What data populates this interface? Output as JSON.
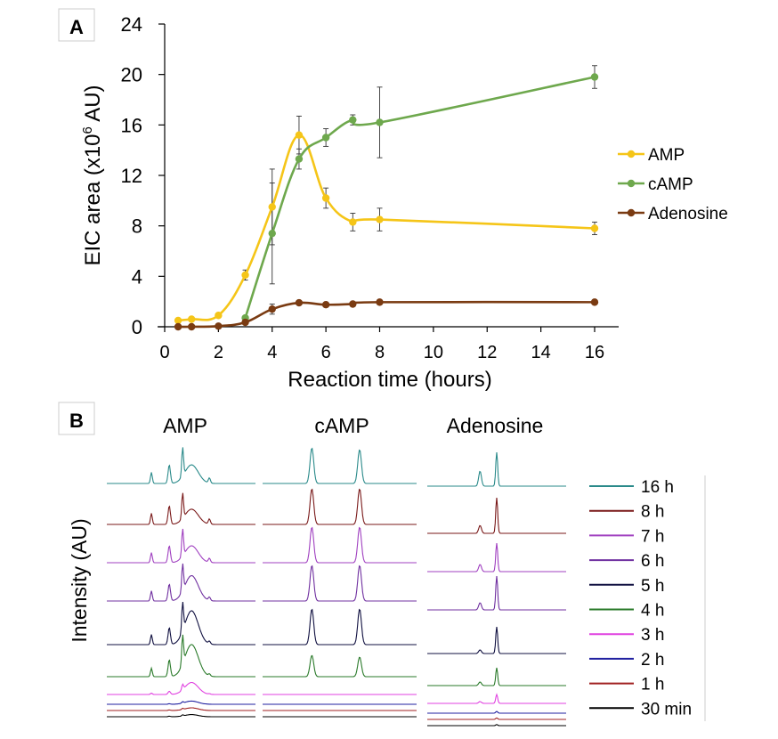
{
  "chart_data": [
    {
      "panel_label": "A",
      "type": "line",
      "xlabel": "Reaction time (hours)",
      "ylabel_prefix": "EIC area (x10",
      "ylabel_sup": "6",
      "ylabel_suffix": " AU)",
      "xlim": [
        0,
        16
      ],
      "ylim": [
        0,
        24
      ],
      "xticks": [
        "0",
        "2",
        "4",
        "6",
        "8",
        "10",
        "12",
        "14",
        "16"
      ],
      "yticks": [
        "0",
        "4",
        "8",
        "12",
        "16",
        "20",
        "24"
      ],
      "legend_position": "right",
      "series": [
        {
          "name": "AMP",
          "color": "#f5c518",
          "x": [
            0.5,
            1,
            2,
            3,
            4,
            5,
            6,
            7,
            8,
            16
          ],
          "y": [
            0.5,
            0.6,
            0.9,
            4.1,
            9.5,
            15.2,
            10.2,
            8.3,
            8.5,
            7.8
          ],
          "err": [
            0,
            0,
            0,
            0.4,
            3.0,
            1.5,
            0.8,
            0.7,
            0.9,
            0.5
          ]
        },
        {
          "name": "cAMP",
          "color": "#6ea84d",
          "x": [
            3,
            4,
            5,
            6,
            7,
            8,
            16
          ],
          "y": [
            0.7,
            7.4,
            13.3,
            15.0,
            16.4,
            16.2,
            19.8
          ],
          "err": [
            0,
            4.0,
            0.8,
            0.7,
            0.4,
            2.8,
            0.9
          ]
        },
        {
          "name": "Adenosine",
          "color": "#7a3b12",
          "x": [
            0.5,
            1,
            2,
            3,
            4,
            5,
            6,
            7,
            8,
            16
          ],
          "y": [
            0.0,
            0.0,
            0.05,
            0.35,
            1.4,
            1.9,
            1.75,
            1.8,
            1.95,
            1.95
          ],
          "err": [
            0,
            0,
            0,
            0,
            0.4,
            0,
            0,
            0,
            0,
            0
          ]
        }
      ]
    },
    {
      "panel_label": "B",
      "type": "line",
      "ylabel": "Intensity (AU)",
      "column_titles": [
        "AMP",
        "cAMP",
        "Adenosine"
      ],
      "legend_position": "right",
      "traces": [
        {
          "label": "16 h",
          "color": "#2a8a8a",
          "amp": [
            0.33,
            0.55,
            0.85,
            0.55,
            0.15
          ],
          "camp": [
            1.0,
            0.95
          ],
          "ado": [
            0.42,
            0.95
          ]
        },
        {
          "label": "8 h",
          "color": "#7a1a1a",
          "amp": [
            0.33,
            0.55,
            0.75,
            0.45,
            0.15
          ],
          "camp": [
            1.0,
            1.0
          ],
          "ado": [
            0.22,
            1.0
          ]
        },
        {
          "label": "7 h",
          "color": "#a040c0",
          "amp": [
            0.3,
            0.5,
            0.8,
            0.5,
            0.12
          ],
          "camp": [
            1.0,
            1.0
          ],
          "ado": [
            0.2,
            0.8
          ]
        },
        {
          "label": "6 h",
          "color": "#7030a0",
          "amp": [
            0.3,
            0.5,
            0.8,
            0.75,
            0.1
          ],
          "camp": [
            1.0,
            1.0
          ],
          "ado": [
            0.2,
            0.95
          ]
        },
        {
          "label": "5 h",
          "color": "#101040",
          "amp": [
            0.3,
            0.5,
            0.85,
            1.0,
            0.08
          ],
          "camp": [
            1.0,
            1.0
          ],
          "ado": [
            0.1,
            0.75
          ]
        },
        {
          "label": "4 h",
          "color": "#2a7a2a",
          "amp": [
            0.25,
            0.5,
            0.85,
            0.95,
            0.06
          ],
          "camp": [
            0.6,
            0.55
          ],
          "ado": [
            0.1,
            0.5
          ]
        },
        {
          "label": "3 h",
          "color": "#e040e0",
          "amp": [
            0.05,
            0.12,
            0.2,
            0.45,
            0.02
          ],
          "camp": [
            0.0,
            0.0
          ],
          "ado": [
            0.05,
            0.25
          ]
        },
        {
          "label": "2 h",
          "color": "#2020a0",
          "amp": [
            0.0,
            0.02,
            0.05,
            0.12,
            0.0
          ],
          "camp": [
            0.0,
            0.0
          ],
          "ado": [
            0.0,
            0.05
          ]
        },
        {
          "label": "1 h",
          "color": "#a02020",
          "amp": [
            0.0,
            0.02,
            0.04,
            0.1,
            0.0
          ],
          "camp": [
            0.0,
            0.0
          ],
          "ado": [
            0.0,
            0.04
          ]
        },
        {
          "label": "30 min",
          "color": "#000000",
          "amp": [
            0.0,
            0.02,
            0.04,
            0.08,
            0.0
          ],
          "camp": [
            0.0,
            0.0
          ],
          "ado": [
            0.0,
            0.03
          ]
        }
      ]
    }
  ]
}
